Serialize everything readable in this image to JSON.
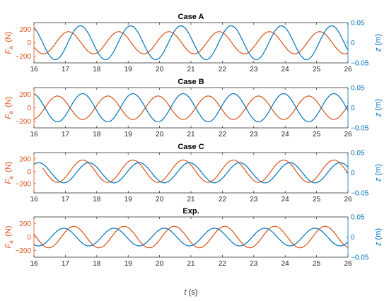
{
  "figure": {
    "xlabel": {
      "var": "t",
      "unit": "(s)"
    },
    "left_axis_color": "#D95319",
    "right_axis_color": "#0072BD"
  },
  "chart_data": [
    {
      "type": "line",
      "title": "Case A",
      "x_range": [
        16,
        26
      ],
      "x_ticks": [
        16,
        17,
        18,
        19,
        20,
        21,
        22,
        23,
        24,
        25,
        26
      ],
      "left_axis": {
        "label": "F_a (N)",
        "ylim": [
          -300,
          300
        ],
        "ticks": [
          -200,
          0,
          200
        ],
        "tick_labels": [
          "−200",
          "0",
          "200"
        ]
      },
      "right_axis": {
        "label": "z (m)",
        "ylim": [
          -0.05,
          0.05
        ],
        "ticks": [
          -0.05,
          0,
          0.05
        ],
        "tick_labels": [
          "−0.05",
          "0",
          "0.05"
        ]
      },
      "series": [
        {
          "axis": "left",
          "color": "#D95319",
          "amplitude": 165,
          "period": 1.6,
          "phase_x": 17.1,
          "x_start": 16
        },
        {
          "axis": "right",
          "color": "#0072BD",
          "amplitude": 0.042,
          "period": 1.6,
          "phase_x": 17.48,
          "x_start": 16
        }
      ]
    },
    {
      "type": "line",
      "title": "Case B",
      "x_range": [
        16,
        26
      ],
      "x_ticks": [
        16,
        17,
        18,
        19,
        20,
        21,
        22,
        23,
        24,
        25,
        26
      ],
      "left_axis": {
        "label": "F_a (N)",
        "ylim": [
          -300,
          300
        ],
        "ticks": [
          -200,
          0,
          200
        ],
        "tick_labels": [
          "−200",
          "0",
          "200"
        ]
      },
      "right_axis": {
        "label": "z (m)",
        "ylim": [
          -0.05,
          0.05
        ],
        "ticks": [
          -0.05,
          0,
          0.05
        ],
        "tick_labels": [
          "−0.05",
          "0",
          "0.05"
        ]
      },
      "series": [
        {
          "axis": "left",
          "color": "#D95319",
          "amplitude": 175,
          "period": 1.6,
          "phase_x": 16.75,
          "x_start": 16
        },
        {
          "axis": "right",
          "color": "#0072BD",
          "amplitude": 0.035,
          "period": 1.6,
          "phase_x": 17.55,
          "x_start": 16
        }
      ]
    },
    {
      "type": "line",
      "title": "Case C",
      "x_range": [
        16,
        26
      ],
      "x_ticks": [
        16,
        17,
        18,
        19,
        20,
        21,
        22,
        23,
        24,
        25,
        26
      ],
      "left_axis": {
        "label": "F_a (N)",
        "ylim": [
          -350,
          300
        ],
        "ticks": [
          -200,
          0,
          200
        ],
        "tick_labels": [
          "−200",
          "0",
          "200"
        ]
      },
      "right_axis": {
        "label": "z (m)",
        "ylim": [
          -0.05,
          0.05
        ],
        "ticks": [
          -0.05,
          0,
          0.05
        ],
        "tick_labels": [
          "−0.05",
          "0",
          "0.05"
        ]
      },
      "series": [
        {
          "axis": "left",
          "color": "#D95319",
          "amplitude": 180,
          "period": 1.6,
          "phase_x": 17.55,
          "x_start": 16.28
        },
        {
          "axis": "right",
          "color": "#0072BD",
          "amplitude": 0.025,
          "period": 1.6,
          "phase_x": 17.75,
          "x_start": 16
        }
      ]
    },
    {
      "type": "line",
      "title": "Exp.",
      "x_range": [
        16,
        26
      ],
      "x_ticks": [
        16,
        17,
        18,
        19,
        20,
        21,
        22,
        23,
        24,
        25,
        26
      ],
      "left_axis": {
        "label": "F_a (N)",
        "ylim": [
          -300,
          300
        ],
        "ticks": [
          -200,
          0,
          200
        ],
        "tick_labels": [
          "−200",
          "0",
          "200"
        ]
      },
      "right_axis": {
        "label": "z (m)",
        "ylim": [
          -0.05,
          0.05
        ],
        "ticks": [
          -0.05,
          0,
          0.05
        ],
        "tick_labels": [
          "−0.05",
          "0",
          "0.05"
        ]
      },
      "series": [
        {
          "axis": "left",
          "color": "#D95319",
          "amplitude": 160,
          "period": 1.6,
          "phase_x": 17.27,
          "x_start": 16
        },
        {
          "axis": "right",
          "color": "#0072BD",
          "amplitude": 0.022,
          "period": 1.6,
          "phase_x": 16.95,
          "x_start": 16
        }
      ]
    }
  ]
}
